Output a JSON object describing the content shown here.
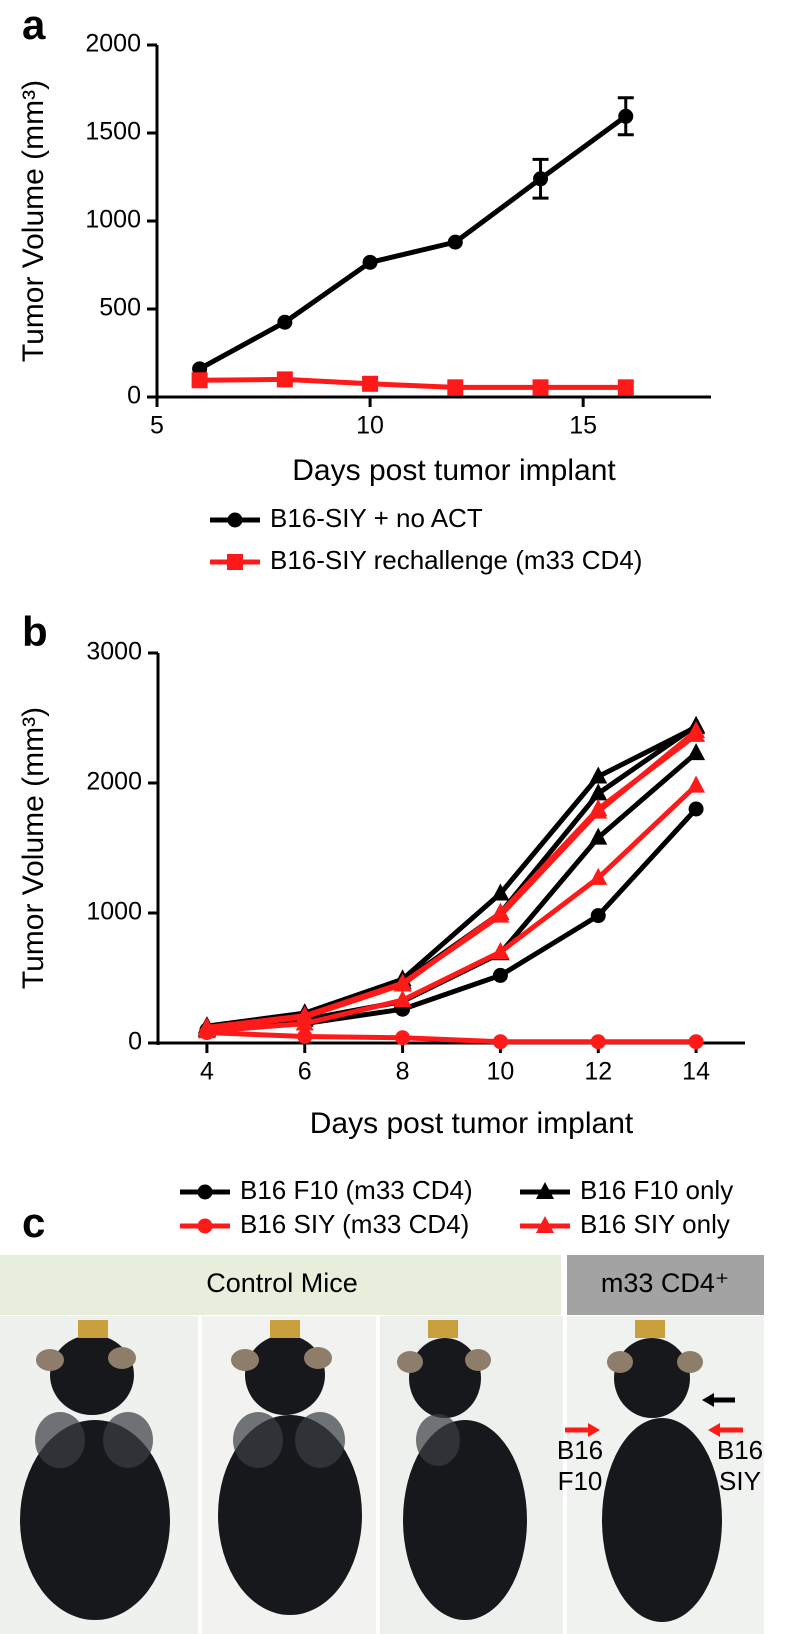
{
  "chart_data": [
    {
      "type": "line",
      "panel": "a",
      "ylabel": "Tumor Volume (mm³)",
      "xlabel": "Days post tumor implant",
      "x": [
        6,
        8,
        10,
        12,
        14,
        16
      ],
      "xlim": [
        5,
        18
      ],
      "xticks": [
        5,
        10,
        15
      ],
      "ylim": [
        0,
        2000
      ],
      "yticks": [
        0,
        500,
        1000,
        1500,
        2000
      ],
      "series": [
        {
          "name": "B16-SIY + no ACT",
          "color": "#000000",
          "marker": "circle",
          "values": [
            160,
            425,
            765,
            880,
            1240,
            1595
          ],
          "errors": [
            null,
            null,
            null,
            null,
            110,
            105
          ]
        },
        {
          "name": "B16-SIY rechallenge (m33 CD4)",
          "color": "#ff1a1a",
          "marker": "square",
          "values": [
            95,
            100,
            75,
            55,
            55,
            55
          ]
        }
      ]
    },
    {
      "type": "multiline",
      "panel": "b",
      "ylabel": "Tumor Volume (mm³)",
      "xlabel": "Days post tumor implant",
      "x": [
        4,
        6,
        8,
        10,
        12,
        14
      ],
      "xlim": [
        3,
        15
      ],
      "xticks": [
        4,
        6,
        8,
        10,
        12,
        14
      ],
      "ylim": [
        0,
        3000
      ],
      "yticks": [
        0,
        1000,
        2000,
        3000
      ],
      "series": [
        {
          "name": "B16 F10 (m33 CD4)",
          "color": "#000000",
          "marker": "circle",
          "values": [
            [
              100,
              150,
              260,
              520,
              980,
              1800
            ]
          ]
        },
        {
          "name": "B16 F10 only",
          "color": "#000000",
          "marker": "triangle",
          "values": [
            [
              130,
              230,
              490,
              1150,
              2050,
              2430
            ],
            [
              110,
              200,
              470,
              1000,
              1920,
              2440
            ],
            [
              100,
              180,
              320,
              690,
              1580,
              2230
            ]
          ]
        },
        {
          "name": "B16 SIY (m33 CD4)",
          "color": "#ff1a1a",
          "marker": "circle",
          "values": [
            [
              80,
              50,
              40,
              10,
              10,
              10
            ]
          ]
        },
        {
          "name": "B16 SIY only",
          "color": "#ff1a1a",
          "marker": "triangle",
          "values": [
            [
              110,
              200,
              450,
              1000,
              1800,
              2370
            ],
            [
              90,
              150,
              330,
              700,
              1270,
              1980
            ],
            [
              120,
              210,
              460,
              980,
              1780,
              2400
            ]
          ]
        }
      ]
    }
  ],
  "panel_c": {
    "letter": "c",
    "header_left": "Control Mice",
    "header_right": "m33 CD4⁺",
    "arrow_labels": [
      [
        "B16",
        "F10"
      ],
      [
        "B16",
        "SIY"
      ]
    ]
  }
}
